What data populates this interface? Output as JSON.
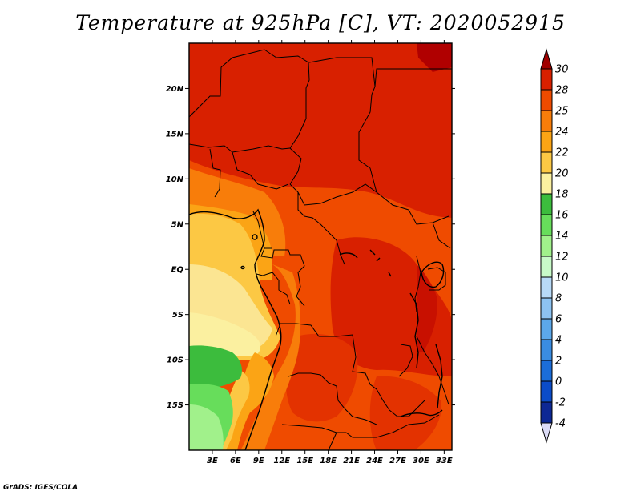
{
  "title": "Temperature at 925hPa [C], VT: 2020052915",
  "footer": "GrADS: IGES/COLA",
  "map": {
    "lon_range": [
      0,
      34
    ],
    "lat_range": [
      -20,
      25
    ],
    "x_ticks": [
      "3E",
      "6E",
      "9E",
      "12E",
      "15E",
      "18E",
      "21E",
      "24E",
      "27E",
      "30E",
      "33E"
    ],
    "y_ticks": [
      "20N",
      "15N",
      "10N",
      "5N",
      "EQ",
      "5S",
      "10S",
      "15S"
    ]
  },
  "colorbar": {
    "labels": [
      "30",
      "28",
      "25",
      "24",
      "22",
      "20",
      "18",
      "16",
      "14",
      "12",
      "10",
      "8",
      "6",
      "4",
      "2",
      "0",
      "-2",
      "-4"
    ],
    "colors": [
      "#a00000",
      "#d82000",
      "#ef4b00",
      "#f87d0a",
      "#fba415",
      "#fcc844",
      "#fbf0a0",
      "#3cbc3d",
      "#67dd5b",
      "#a1f18b",
      "#c8fac8",
      "#b8daf7",
      "#8dc3f2",
      "#5ca8ea",
      "#3a8ce1",
      "#1b6dd9",
      "#0b4cc8",
      "#0d2894",
      "#0b0b5e",
      "#dcdcf7"
    ]
  }
}
